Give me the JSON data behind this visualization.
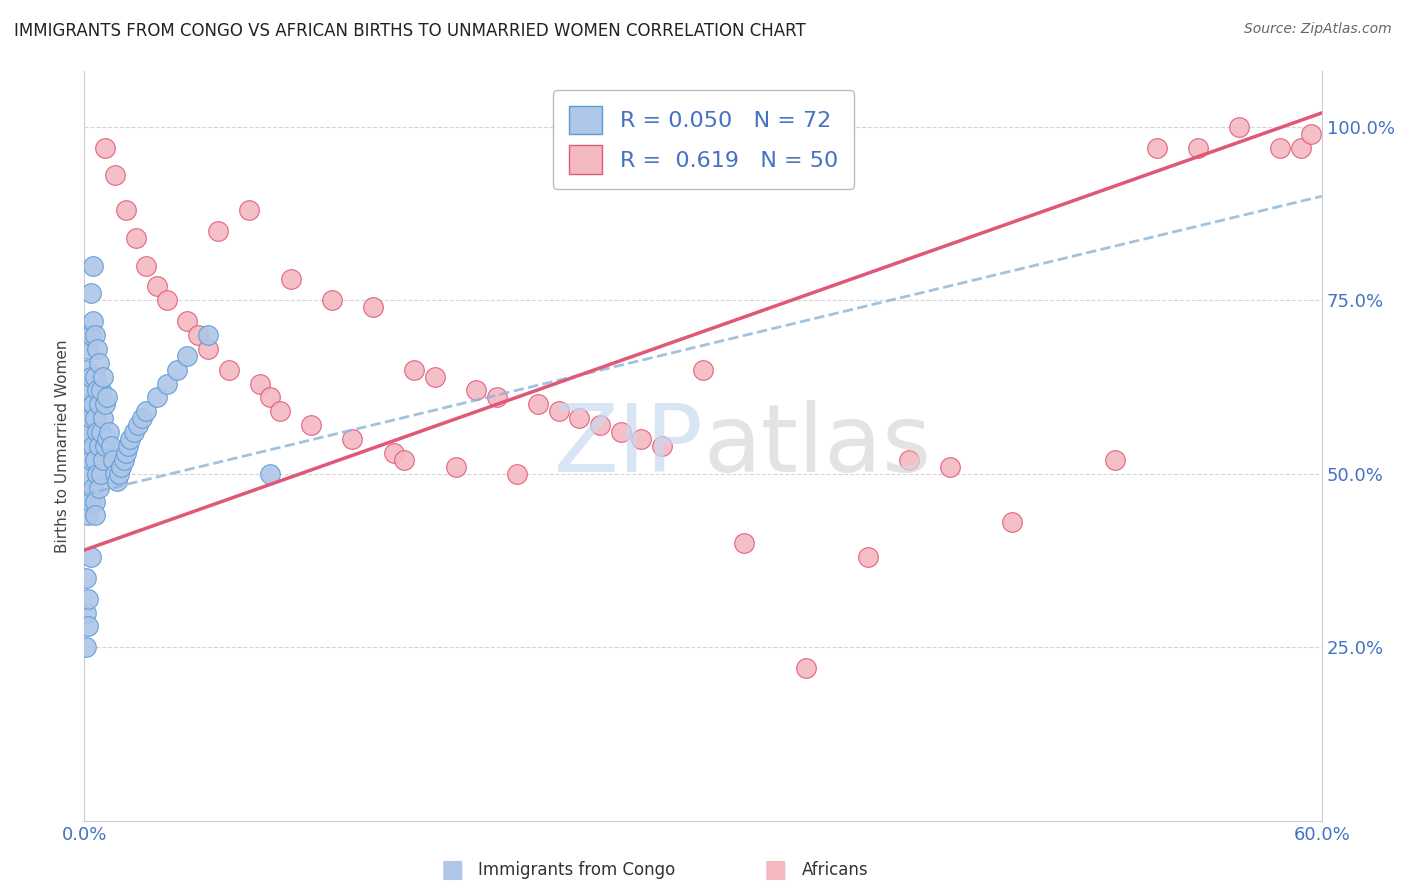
{
  "title": "IMMIGRANTS FROM CONGO VS AFRICAN BIRTHS TO UNMARRIED WOMEN CORRELATION CHART",
  "source": "Source: ZipAtlas.com",
  "ylabel": "Births to Unmarried Women",
  "xlim": [
    0.0,
    0.6
  ],
  "ylim": [
    0.0,
    1.08
  ],
  "xtick_vals": [
    0.0,
    0.1,
    0.2,
    0.3,
    0.4,
    0.5,
    0.6
  ],
  "xticklabels": [
    "0.0%",
    "",
    "",
    "",
    "",
    "",
    "60.0%"
  ],
  "ytick_vals": [
    0.0,
    0.25,
    0.5,
    0.75,
    1.0
  ],
  "yticklabels": [
    "",
    "25.0%",
    "50.0%",
    "75.0%",
    "100.0%"
  ],
  "tick_color": "#4472c4",
  "background_color": "#ffffff",
  "grid_color": "#cccccc",
  "legend_R1": "0.050",
  "legend_N1": "72",
  "legend_R2": "0.619",
  "legend_N2": "50",
  "scatter_color1": "#aec6e8",
  "scatter_color2": "#f4b8c1",
  "scatter_edge1": "#5b9bd5",
  "scatter_edge2": "#e05878",
  "trendline_color1": "#8ab4d8",
  "trendline_color2": "#e05878",
  "scatter_label1": "Immigrants from Congo",
  "scatter_label2": "Africans",
  "congo_x": [
    0.001,
    0.001,
    0.001,
    0.001,
    0.001,
    0.001,
    0.001,
    0.001,
    0.002,
    0.002,
    0.002,
    0.002,
    0.002,
    0.002,
    0.002,
    0.003,
    0.003,
    0.003,
    0.003,
    0.003,
    0.003,
    0.003,
    0.004,
    0.004,
    0.004,
    0.004,
    0.004,
    0.005,
    0.005,
    0.005,
    0.005,
    0.005,
    0.005,
    0.006,
    0.006,
    0.006,
    0.006,
    0.007,
    0.007,
    0.007,
    0.007,
    0.008,
    0.008,
    0.008,
    0.009,
    0.009,
    0.009,
    0.01,
    0.01,
    0.011,
    0.011,
    0.012,
    0.013,
    0.014,
    0.015,
    0.016,
    0.017,
    0.018,
    0.019,
    0.02,
    0.021,
    0.022,
    0.024,
    0.026,
    0.028,
    0.03,
    0.035,
    0.04,
    0.045,
    0.05,
    0.06,
    0.09
  ],
  "congo_y": [
    0.47,
    0.55,
    0.6,
    0.65,
    0.7,
    0.3,
    0.25,
    0.35,
    0.44,
    0.5,
    0.56,
    0.62,
    0.68,
    0.28,
    0.32,
    0.46,
    0.52,
    0.58,
    0.64,
    0.7,
    0.76,
    0.38,
    0.48,
    0.54,
    0.6,
    0.72,
    0.8,
    0.46,
    0.52,
    0.58,
    0.64,
    0.7,
    0.44,
    0.5,
    0.56,
    0.62,
    0.68,
    0.48,
    0.54,
    0.6,
    0.66,
    0.5,
    0.56,
    0.62,
    0.52,
    0.58,
    0.64,
    0.54,
    0.6,
    0.55,
    0.61,
    0.56,
    0.54,
    0.52,
    0.5,
    0.49,
    0.5,
    0.51,
    0.52,
    0.53,
    0.54,
    0.55,
    0.56,
    0.57,
    0.58,
    0.59,
    0.61,
    0.63,
    0.65,
    0.67,
    0.7,
    0.5
  ],
  "african_x": [
    0.01,
    0.015,
    0.02,
    0.025,
    0.03,
    0.035,
    0.04,
    0.05,
    0.055,
    0.06,
    0.065,
    0.07,
    0.08,
    0.085,
    0.09,
    0.095,
    0.1,
    0.11,
    0.12,
    0.13,
    0.14,
    0.15,
    0.155,
    0.16,
    0.17,
    0.18,
    0.19,
    0.2,
    0.21,
    0.22,
    0.23,
    0.24,
    0.25,
    0.26,
    0.27,
    0.28,
    0.3,
    0.32,
    0.35,
    0.38,
    0.4,
    0.42,
    0.45,
    0.5,
    0.52,
    0.54,
    0.56,
    0.58,
    0.59,
    0.595
  ],
  "african_y": [
    0.97,
    0.93,
    0.88,
    0.84,
    0.8,
    0.77,
    0.75,
    0.72,
    0.7,
    0.68,
    0.85,
    0.65,
    0.88,
    0.63,
    0.61,
    0.59,
    0.78,
    0.57,
    0.75,
    0.55,
    0.74,
    0.53,
    0.52,
    0.65,
    0.64,
    0.51,
    0.62,
    0.61,
    0.5,
    0.6,
    0.59,
    0.58,
    0.57,
    0.56,
    0.55,
    0.54,
    0.65,
    0.4,
    0.22,
    0.38,
    0.52,
    0.51,
    0.43,
    0.52,
    0.97,
    0.97,
    1.0,
    0.97,
    0.97,
    0.99
  ],
  "congo_trend_x0": 0.0,
  "congo_trend_y0": 0.47,
  "congo_trend_x1": 0.6,
  "congo_trend_y1": 0.9,
  "african_trend_x0": 0.0,
  "african_trend_y0": 0.39,
  "african_trend_x1": 0.6,
  "african_trend_y1": 1.02
}
